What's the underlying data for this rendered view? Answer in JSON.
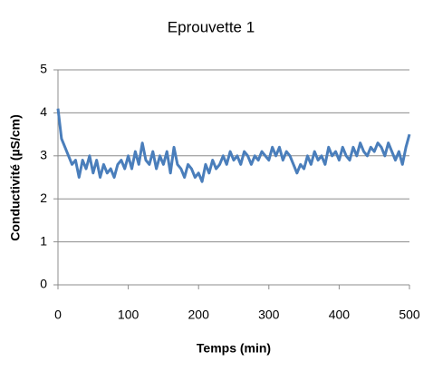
{
  "chart_data": {
    "type": "line",
    "title": "Eprouvette 1",
    "xlabel": "Temps (min)",
    "ylabel": "Conductivité (µS/cm)",
    "x": [
      0,
      5,
      10,
      15,
      20,
      25,
      30,
      35,
      40,
      45,
      50,
      55,
      60,
      65,
      70,
      75,
      80,
      85,
      90,
      95,
      100,
      105,
      110,
      115,
      120,
      125,
      130,
      135,
      140,
      145,
      150,
      155,
      160,
      165,
      170,
      175,
      180,
      185,
      190,
      195,
      200,
      205,
      210,
      215,
      220,
      225,
      230,
      235,
      240,
      245,
      250,
      255,
      260,
      265,
      270,
      275,
      280,
      285,
      290,
      295,
      300,
      305,
      310,
      315,
      320,
      325,
      330,
      335,
      340,
      345,
      350,
      355,
      360,
      365,
      370,
      375,
      380,
      385,
      390,
      395,
      400,
      405,
      410,
      415,
      420,
      425,
      430,
      435,
      440,
      445,
      450,
      455,
      460,
      465,
      470,
      475,
      480,
      485,
      490,
      495,
      500
    ],
    "series": [
      {
        "name": "Eprouvette 1",
        "color": "#4a7ebb",
        "values": [
          4.1,
          3.4,
          3.2,
          3.0,
          2.8,
          2.9,
          2.5,
          2.9,
          2.7,
          3.0,
          2.6,
          2.9,
          2.5,
          2.8,
          2.6,
          2.7,
          2.5,
          2.8,
          2.9,
          2.7,
          3.0,
          2.7,
          3.1,
          2.8,
          3.3,
          2.9,
          2.8,
          3.1,
          2.7,
          3.0,
          2.8,
          3.1,
          2.6,
          3.2,
          2.8,
          2.7,
          2.5,
          2.8,
          2.7,
          2.5,
          2.6,
          2.4,
          2.8,
          2.6,
          2.9,
          2.7,
          2.8,
          3.0,
          2.8,
          3.1,
          2.9,
          3.0,
          2.8,
          3.1,
          3.0,
          2.8,
          3.0,
          2.9,
          3.1,
          3.0,
          2.9,
          3.2,
          3.0,
          3.2,
          2.9,
          3.1,
          3.0,
          2.8,
          2.6,
          2.8,
          2.7,
          3.0,
          2.8,
          3.1,
          2.9,
          3.0,
          2.8,
          3.2,
          3.0,
          3.1,
          2.9,
          3.2,
          3.0,
          2.9,
          3.2,
          3.0,
          3.3,
          3.1,
          3.0,
          3.2,
          3.1,
          3.3,
          3.2,
          3.0,
          3.3,
          3.1,
          2.9,
          3.1,
          2.8,
          3.2,
          3.5
        ]
      }
    ],
    "xlim": [
      0,
      500
    ],
    "xticks": [
      0,
      100,
      200,
      300,
      400,
      500
    ],
    "ylim": [
      0,
      5
    ],
    "yticks": [
      0,
      1,
      2,
      3,
      4,
      5
    ],
    "grid": true
  }
}
